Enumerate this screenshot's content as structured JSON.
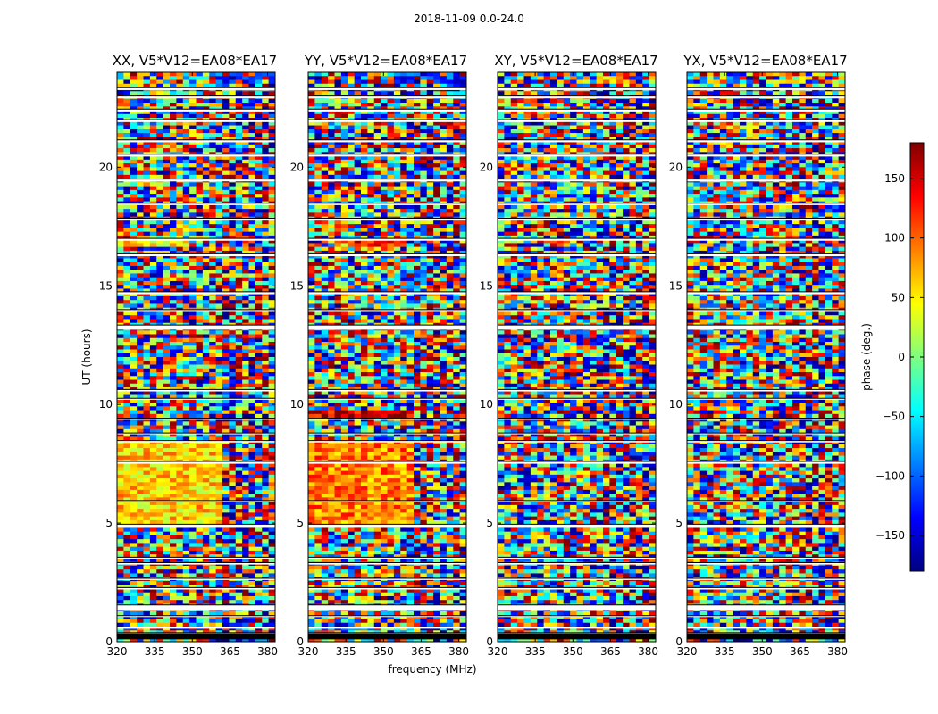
{
  "figure": {
    "suptitle": "2018-11-09 0.0-24.0",
    "xlabel": "frequency (MHz)",
    "ylabel": "UT (hours)",
    "colorbar_label": "phase (deg.)",
    "colormap": "jet"
  },
  "chart_data": {
    "type": "heatmap",
    "panels": [
      {
        "title": "XX, V5*V12=EA08*EA17"
      },
      {
        "title": "YY, V5*V12=EA08*EA17"
      },
      {
        "title": "XY, V5*V12=EA08*EA17"
      },
      {
        "title": "YX, V5*V12=EA08*EA17"
      }
    ],
    "x_ticks": [
      320,
      335,
      350,
      365,
      380
    ],
    "x_tick_labels": [
      "320",
      "335",
      "350",
      "365",
      "380"
    ],
    "xlim": [
      320,
      383
    ],
    "y_ticks": [
      0,
      5,
      10,
      15,
      20
    ],
    "y_tick_labels": [
      "0",
      "5",
      "10",
      "15",
      "20"
    ],
    "ylim": [
      0,
      24
    ],
    "colorbar": {
      "ticks": [
        150,
        100,
        50,
        0,
        -50,
        -100,
        -150
      ],
      "tick_labels": [
        "150",
        "100",
        "50",
        "0",
        "−50",
        "−100",
        "−150"
      ],
      "range": [
        -180,
        180
      ]
    },
    "flagged_gaps_hours": [
      [
        0.3,
        0.38
      ],
      [
        0.55,
        0.62
      ],
      [
        1.05,
        1.1
      ],
      [
        1.3,
        1.55
      ],
      [
        2.2,
        2.28
      ],
      [
        2.6,
        2.67
      ],
      [
        3.25,
        3.33
      ],
      [
        3.5,
        3.56
      ],
      [
        4.8,
        4.95
      ],
      [
        5.9,
        5.95
      ],
      [
        7.5,
        7.6
      ],
      [
        8.4,
        8.48
      ],
      [
        8.75,
        8.8
      ],
      [
        9.35,
        9.42
      ],
      [
        10.2,
        10.26
      ],
      [
        10.55,
        10.63
      ],
      [
        13.15,
        13.35
      ],
      [
        13.9,
        14.0
      ],
      [
        14.65,
        14.75
      ],
      [
        16.25,
        16.35
      ],
      [
        16.9,
        17.0
      ],
      [
        17.75,
        17.85
      ],
      [
        18.4,
        18.48
      ],
      [
        19.4,
        19.5
      ],
      [
        20.45,
        20.55
      ],
      [
        21.05,
        21.15
      ],
      [
        21.9,
        22.0
      ],
      [
        22.35,
        22.45
      ],
      [
        22.9,
        23.0
      ],
      [
        23.25,
        23.35
      ]
    ],
    "coherent_regions": [
      {
        "panel": "XX",
        "ut": [
          4.9,
          8.4
        ],
        "freq": [
          320,
          363
        ],
        "phase_deg": 60
      },
      {
        "panel": "YY",
        "ut": [
          4.9,
          8.4
        ],
        "freq": [
          320,
          363
        ],
        "phase_deg": 90
      },
      {
        "panel": "YY",
        "ut": [
          9.4,
          9.7
        ],
        "freq": [
          320,
          363
        ],
        "phase_deg": 150
      },
      {
        "panel": "XX",
        "ut": [
          16.6,
          17.0
        ],
        "freq": [
          320,
          350
        ],
        "phase_deg": 55
      },
      {
        "panel": "YY",
        "ut": [
          16.6,
          17.0
        ],
        "freq": [
          335,
          360
        ],
        "phase_deg": 130
      },
      {
        "panel": "XX",
        "ut": [
          23.5,
          24.0
        ],
        "freq": [
          360,
          383
        ],
        "phase_deg": -100
      },
      {
        "panel": "YY",
        "ut": [
          23.5,
          24.0
        ],
        "freq": [
          355,
          383
        ],
        "phase_deg": -120
      },
      {
        "panel": "XY",
        "ut": [
          23.5,
          24.0
        ],
        "freq": [
          360,
          383
        ],
        "phase_deg": 60
      },
      {
        "panel": "YX",
        "ut": [
          23.5,
          24.0
        ],
        "freq": [
          360,
          383
        ],
        "phase_deg": 60
      }
    ]
  }
}
